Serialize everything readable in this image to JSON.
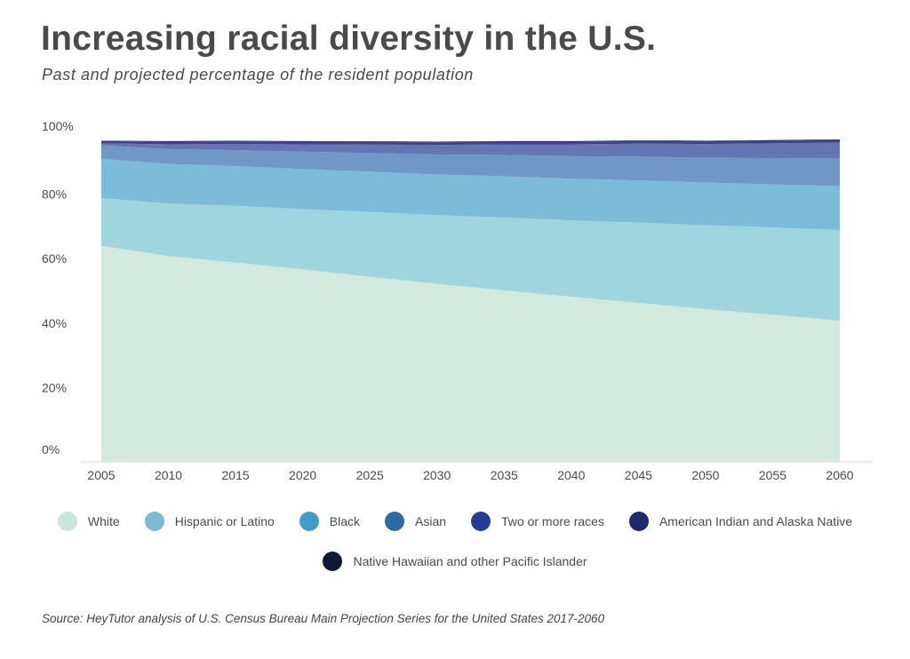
{
  "title": "Increasing racial diversity in the U.S.",
  "subtitle": "Past and projected percentage of the resident population",
  "source": "Source: HeyTutor analysis of U.S. Census Bureau Main Projection Series for the United States 2017-2060",
  "chart_data": {
    "type": "area",
    "stacked": true,
    "title": "Increasing racial diversity in the U.S.",
    "xlabel": "",
    "ylabel": "",
    "x": [
      "2005",
      "2010",
      "2015",
      "2020",
      "2025",
      "2030",
      "2035",
      "2040",
      "2045",
      "2050",
      "2055",
      "2060"
    ],
    "ylim": [
      0,
      100
    ],
    "yticks": [
      "0%",
      "20%",
      "40%",
      "60%",
      "80%",
      "100%"
    ],
    "legend_position": "bottom",
    "series": [
      {
        "name": "White",
        "color": "#d2e9de",
        "values": [
          67.0,
          63.8,
          61.8,
          59.7,
          57.4,
          55.2,
          53.2,
          51.2,
          49.3,
          47.4,
          45.6,
          43.8
        ]
      },
      {
        "name": "Hispanic or Latino",
        "color": "#9fd5de",
        "values": [
          14.8,
          16.3,
          17.6,
          18.7,
          20.1,
          21.3,
          22.6,
          23.7,
          24.9,
          26.0,
          27.1,
          28.1
        ]
      },
      {
        "name": "Black",
        "color": "#7cbcd8",
        "values": [
          12.2,
          12.3,
          12.3,
          12.4,
          12.5,
          12.6,
          12.8,
          12.9,
          13.1,
          13.2,
          13.4,
          13.6
        ]
      },
      {
        "name": "Asian",
        "color": "#6f98c6",
        "values": [
          4.2,
          4.6,
          5.0,
          5.4,
          5.8,
          6.2,
          6.6,
          7.0,
          7.4,
          7.7,
          8.1,
          8.6
        ]
      },
      {
        "name": "Two or more races",
        "color": "#6575b3",
        "values": [
          0.6,
          1.5,
          1.9,
          2.3,
          2.6,
          3.0,
          3.3,
          3.7,
          4.0,
          4.3,
          4.6,
          4.9
        ]
      },
      {
        "name": "American Indian and Alaska Native",
        "color": "#40437e",
        "values": [
          0.7,
          0.8,
          0.8,
          0.8,
          0.8,
          0.8,
          0.8,
          0.8,
          0.8,
          0.8,
          0.8,
          0.8
        ]
      },
      {
        "name": "Native Hawaiian and other Pacific Islander",
        "color": "#1c1f45",
        "values": [
          0.1,
          0.2,
          0.2,
          0.2,
          0.2,
          0.2,
          0.2,
          0.2,
          0.2,
          0.2,
          0.2,
          0.2
        ]
      }
    ]
  },
  "legend": {
    "row1": [
      {
        "label": "White",
        "color": "#c9e5dc"
      },
      {
        "label": "Hispanic or Latino",
        "color": "#7cbad6"
      },
      {
        "label": "Black",
        "color": "#3f9dc8"
      },
      {
        "label": "Asian",
        "color": "#2f6aa6"
      },
      {
        "label": "Two or more races",
        "color": "#253e8f"
      },
      {
        "label": "American Indian and Alaska Native",
        "color": "#1e2a6b"
      }
    ],
    "row2": [
      {
        "label": "Native Hawaiian and other Pacific Islander",
        "color": "#111834"
      }
    ]
  }
}
